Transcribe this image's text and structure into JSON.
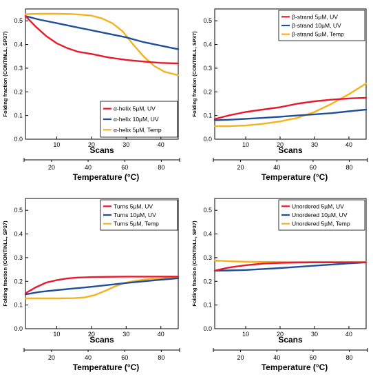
{
  "colors": {
    "red": "#e8192c",
    "blue": "#1f4e9c",
    "orange": "#f5b21c"
  },
  "chart_data": [
    {
      "type": "line",
      "xlabel": "Scans",
      "ylabel": "Folding fraction (CONTINLL, SP37)",
      "x2label": "Temperature (°C)",
      "xlim": [
        1,
        45
      ],
      "ylim": [
        0,
        0.55
      ],
      "xticks": [
        10,
        20,
        30,
        40
      ],
      "yticks": [
        0.0,
        0.1,
        0.2,
        0.3,
        0.4,
        0.5
      ],
      "x2ticks": [
        20,
        40,
        60,
        80
      ],
      "legend_position": "bottom-right",
      "series": [
        {
          "name": "α-helix 5µM, UV",
          "color": "red",
          "x": [
            1,
            4,
            7,
            10,
            13,
            16,
            20,
            25,
            30,
            35,
            40,
            45
          ],
          "y": [
            0.52,
            0.475,
            0.435,
            0.405,
            0.385,
            0.37,
            0.36,
            0.345,
            0.335,
            0.328,
            0.322,
            0.32
          ]
        },
        {
          "name": "α-helix 10µM, UV",
          "color": "blue",
          "x": [
            1,
            5,
            10,
            15,
            20,
            25,
            30,
            35,
            40,
            45
          ],
          "y": [
            0.52,
            0.505,
            0.49,
            0.475,
            0.46,
            0.445,
            0.43,
            0.41,
            0.395,
            0.38
          ]
        },
        {
          "name": "α-helix 5µM, Temp",
          "color": "orange",
          "x": [
            1,
            5,
            10,
            15,
            20,
            23,
            26,
            29,
            32,
            35,
            38,
            41,
            45
          ],
          "y": [
            0.528,
            0.53,
            0.53,
            0.528,
            0.522,
            0.51,
            0.49,
            0.455,
            0.4,
            0.35,
            0.31,
            0.285,
            0.27
          ]
        }
      ]
    },
    {
      "type": "line",
      "xlabel": "Scans",
      "ylabel": "Folding fraction (CONTINLL, SP37)",
      "x2label": "Temperature (°C)",
      "xlim": [
        1,
        45
      ],
      "ylim": [
        0,
        0.55
      ],
      "xticks": [
        10,
        20,
        30,
        40
      ],
      "yticks": [
        0.0,
        0.1,
        0.2,
        0.3,
        0.4,
        0.5
      ],
      "x2ticks": [
        20,
        40,
        60,
        80
      ],
      "legend_position": "top-right",
      "series": [
        {
          "name": "β-strand 5µM, UV",
          "color": "red",
          "x": [
            1,
            5,
            10,
            15,
            20,
            25,
            30,
            35,
            40,
            45
          ],
          "y": [
            0.085,
            0.1,
            0.115,
            0.125,
            0.135,
            0.15,
            0.16,
            0.167,
            0.172,
            0.175
          ]
        },
        {
          "name": "β-strand 10µM, UV",
          "color": "blue",
          "x": [
            1,
            5,
            10,
            15,
            20,
            25,
            30,
            35,
            40,
            45
          ],
          "y": [
            0.08,
            0.082,
            0.086,
            0.09,
            0.095,
            0.1,
            0.105,
            0.11,
            0.118,
            0.125
          ]
        },
        {
          "name": "β-strand 5µM, Temp",
          "color": "orange",
          "x": [
            1,
            5,
            10,
            15,
            20,
            25,
            30,
            35,
            40,
            45
          ],
          "y": [
            0.055,
            0.055,
            0.058,
            0.065,
            0.075,
            0.09,
            0.115,
            0.15,
            0.19,
            0.235
          ]
        }
      ]
    },
    {
      "type": "line",
      "xlabel": "Scans",
      "ylabel": "Folding fraction (CONTINLL, SP37)",
      "x2label": "Temperature (°C)",
      "xlim": [
        1,
        45
      ],
      "ylim": [
        0,
        0.55
      ],
      "xticks": [
        10,
        20,
        30,
        40
      ],
      "yticks": [
        0.0,
        0.1,
        0.2,
        0.3,
        0.4,
        0.5
      ],
      "x2ticks": [
        20,
        40,
        60,
        80
      ],
      "legend_position": "top-right",
      "series": [
        {
          "name": "Turns 5µM, UV",
          "color": "red",
          "x": [
            1,
            4,
            7,
            10,
            13,
            16,
            20,
            25,
            30,
            35,
            40,
            45
          ],
          "y": [
            0.15,
            0.175,
            0.195,
            0.205,
            0.212,
            0.216,
            0.218,
            0.219,
            0.22,
            0.22,
            0.22,
            0.22
          ]
        },
        {
          "name": "Turns 10µM, UV",
          "color": "blue",
          "x": [
            1,
            5,
            10,
            15,
            20,
            25,
            30,
            35,
            40,
            45
          ],
          "y": [
            0.145,
            0.155,
            0.163,
            0.17,
            0.177,
            0.185,
            0.193,
            0.2,
            0.207,
            0.213
          ]
        },
        {
          "name": "Turns 5µM, Temp",
          "color": "orange",
          "x": [
            1,
            5,
            10,
            15,
            18,
            21,
            24,
            27,
            30,
            33,
            36,
            40,
            45
          ],
          "y": [
            0.128,
            0.128,
            0.128,
            0.129,
            0.132,
            0.142,
            0.16,
            0.18,
            0.195,
            0.203,
            0.208,
            0.212,
            0.215
          ]
        }
      ]
    },
    {
      "type": "line",
      "xlabel": "Scans",
      "ylabel": "Folding fraction (CONTINLL, SP37)",
      "x2label": "Temperature (°C)",
      "xlim": [
        1,
        45
      ],
      "ylim": [
        0,
        0.55
      ],
      "xticks": [
        10,
        20,
        30,
        40
      ],
      "yticks": [
        0.0,
        0.1,
        0.2,
        0.3,
        0.4,
        0.5
      ],
      "x2ticks": [
        20,
        40,
        60,
        80
      ],
      "legend_position": "top-right",
      "series": [
        {
          "name": "Unordered 5µM, UV",
          "color": "red",
          "x": [
            1,
            5,
            10,
            15,
            20,
            25,
            30,
            35,
            40,
            45
          ],
          "y": [
            0.245,
            0.258,
            0.268,
            0.275,
            0.278,
            0.279,
            0.28,
            0.28,
            0.28,
            0.28
          ]
        },
        {
          "name": "Unordered 10µM, UV",
          "color": "blue",
          "x": [
            1,
            5,
            10,
            15,
            20,
            25,
            30,
            35,
            40,
            45
          ],
          "y": [
            0.245,
            0.246,
            0.248,
            0.252,
            0.256,
            0.261,
            0.266,
            0.271,
            0.276,
            0.28
          ]
        },
        {
          "name": "Unordered 5µM, Temp",
          "color": "orange",
          "x": [
            1,
            5,
            10,
            15,
            20,
            25,
            30,
            35,
            40,
            45
          ],
          "y": [
            0.288,
            0.285,
            0.283,
            0.282,
            0.282,
            0.282,
            0.282,
            0.282,
            0.282,
            0.282
          ]
        }
      ]
    }
  ]
}
